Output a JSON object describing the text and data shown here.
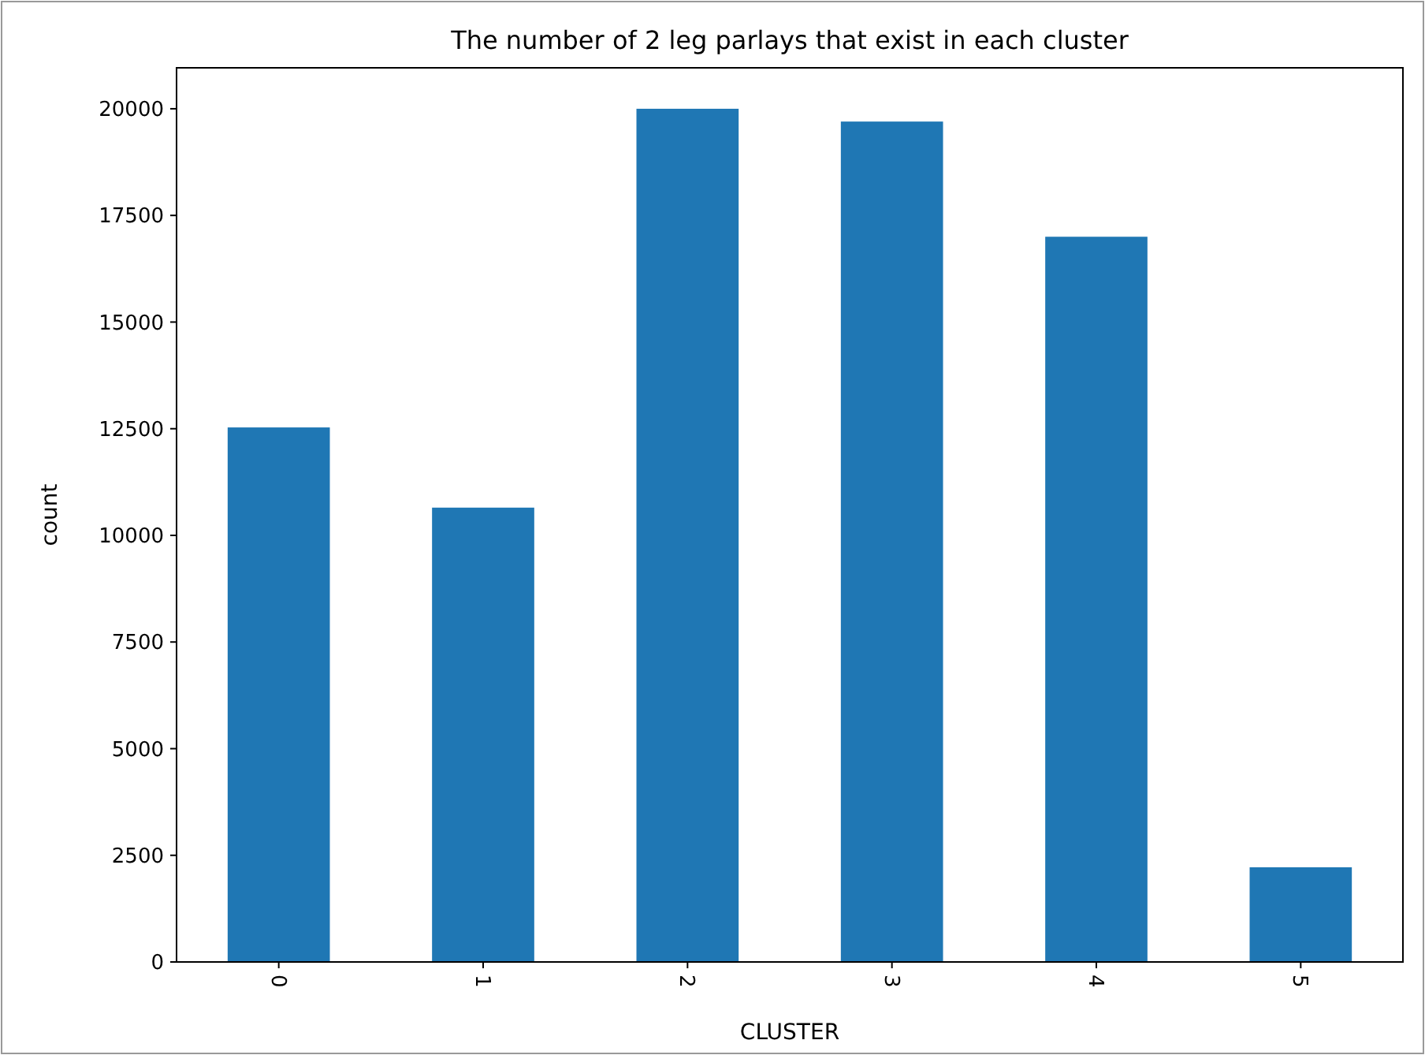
{
  "chart_data": {
    "type": "bar",
    "title": "The number of 2 leg parlays that exist in each cluster",
    "xlabel": "CLUSTER",
    "ylabel": "count",
    "categories": [
      "0",
      "1",
      "2",
      "3",
      "4",
      "5"
    ],
    "values": [
      12530,
      10650,
      20000,
      19700,
      17000,
      2220
    ],
    "color": "#1f77b4",
    "ylim": [
      0,
      20960
    ],
    "yticks": [
      0,
      2500,
      5000,
      7500,
      10000,
      12500,
      15000,
      17500,
      20000
    ],
    "grid": false
  }
}
